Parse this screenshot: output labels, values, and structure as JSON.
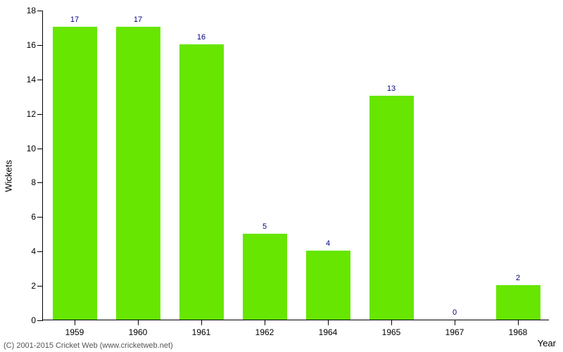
{
  "chart": {
    "type": "bar",
    "categories": [
      "1959",
      "1960",
      "1961",
      "1962",
      "1964",
      "1965",
      "1967",
      "1968"
    ],
    "values": [
      17,
      17,
      16,
      5,
      4,
      13,
      0,
      2
    ],
    "bar_color": "#66e600",
    "value_label_color": "#000080",
    "background_color": "#ffffff",
    "axis_color": "#000000",
    "ylabel": "Wickets",
    "xlabel": "Year",
    "ylim_min": 0,
    "ylim_max": 18,
    "ytick_step": 2,
    "bar_width_ratio": 0.7,
    "label_fontsize": 13,
    "tick_fontsize": 12,
    "value_fontsize": 11
  },
  "copyright": "(C) 2001-2015 Cricket Web (www.cricketweb.net)"
}
